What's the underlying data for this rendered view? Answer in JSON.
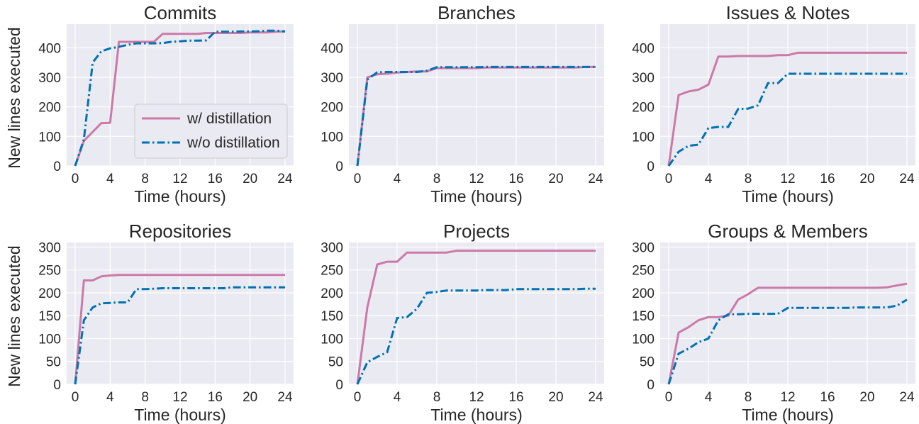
{
  "colors": {
    "with": "#cc79a7",
    "without": "#0072b2",
    "panel_bg": "#eaeaf2",
    "grid": "#ffffff"
  },
  "legend": {
    "with_label": "w/ distillation",
    "without_label": "w/o distillation",
    "location": "lower-right of first panel"
  },
  "chart_data": [
    {
      "type": "line",
      "title": "Commits",
      "xlabel": "Time (hours)",
      "ylabel": "New lines executed",
      "xlim": [
        0,
        24
      ],
      "ylim": [
        0,
        480
      ],
      "xticks": [
        0,
        4,
        8,
        12,
        16,
        20,
        24
      ],
      "yticks": [
        0,
        100,
        200,
        300,
        400
      ],
      "grid": true,
      "series": [
        {
          "name": "w/ distillation",
          "style": "solid",
          "x": [
            0,
            1,
            2,
            3,
            4,
            5,
            6,
            7,
            8,
            9,
            10,
            11,
            12,
            13,
            14,
            15,
            16,
            17,
            18,
            19,
            20,
            21,
            22,
            23,
            24
          ],
          "values": [
            0,
            85,
            115,
            145,
            146,
            420,
            420,
            420,
            420,
            420,
            447,
            447,
            447,
            447,
            447,
            450,
            450,
            450,
            450,
            450,
            452,
            452,
            452,
            454,
            455
          ]
        },
        {
          "name": "w/o distillation",
          "style": "dashdot",
          "x": [
            0,
            1,
            2,
            3,
            4,
            5,
            6,
            7,
            8,
            9,
            10,
            11,
            12,
            13,
            14,
            15,
            16,
            17,
            18,
            19,
            20,
            21,
            22,
            23,
            24
          ],
          "values": [
            0,
            90,
            350,
            388,
            398,
            403,
            410,
            415,
            415,
            415,
            416,
            420,
            422,
            424,
            424,
            425,
            454,
            454,
            454,
            455,
            455,
            456,
            458,
            458,
            455
          ]
        }
      ]
    },
    {
      "type": "line",
      "title": "Branches",
      "xlabel": "Time (hours)",
      "ylabel": "",
      "xlim": [
        0,
        24
      ],
      "ylim": [
        0,
        480
      ],
      "xticks": [
        0,
        4,
        8,
        12,
        16,
        20,
        24
      ],
      "yticks": [
        0,
        100,
        200,
        300,
        400
      ],
      "grid": true,
      "series": [
        {
          "name": "w/ distillation",
          "style": "solid",
          "x": [
            0,
            1,
            2,
            3,
            4,
            5,
            6,
            7,
            8,
            9,
            10,
            11,
            12,
            13,
            14,
            15,
            16,
            17,
            18,
            19,
            20,
            21,
            22,
            23,
            24
          ],
          "values": [
            0,
            300,
            310,
            312,
            316,
            318,
            320,
            320,
            331,
            331,
            331,
            331,
            331,
            333,
            333,
            333,
            333,
            333,
            333,
            333,
            333,
            333,
            333,
            335,
            335
          ]
        },
        {
          "name": "w/o distillation",
          "style": "dashdot",
          "x": [
            0,
            1,
            2,
            3,
            4,
            5,
            6,
            7,
            8,
            9,
            10,
            11,
            12,
            13,
            14,
            15,
            16,
            17,
            18,
            19,
            20,
            21,
            22,
            23,
            24
          ],
          "values": [
            0,
            292,
            317,
            318,
            318,
            318,
            318,
            322,
            334,
            334,
            334,
            334,
            334,
            335,
            335,
            335,
            335,
            335,
            335,
            335,
            335,
            335,
            335,
            335,
            335
          ]
        }
      ]
    },
    {
      "type": "line",
      "title": "Issues & Notes",
      "xlabel": "Time (hours)",
      "ylabel": "",
      "xlim": [
        0,
        24
      ],
      "ylim": [
        0,
        480
      ],
      "xticks": [
        0,
        4,
        8,
        12,
        16,
        20,
        24
      ],
      "yticks": [
        0,
        100,
        200,
        300,
        400
      ],
      "grid": true,
      "series": [
        {
          "name": "w/ distillation",
          "style": "solid",
          "x": [
            0,
            1,
            2,
            3,
            4,
            5,
            6,
            7,
            8,
            9,
            10,
            11,
            12,
            13,
            14,
            15,
            16,
            17,
            18,
            19,
            20,
            21,
            22,
            23,
            24
          ],
          "values": [
            0,
            240,
            252,
            258,
            275,
            370,
            370,
            372,
            372,
            372,
            372,
            375,
            375,
            383,
            383,
            383,
            383,
            383,
            383,
            383,
            383,
            383,
            383,
            383,
            383
          ]
        },
        {
          "name": "w/o distillation",
          "style": "dashdot",
          "x": [
            0,
            1,
            2,
            3,
            4,
            5,
            6,
            7,
            8,
            9,
            10,
            11,
            12,
            13,
            14,
            15,
            16,
            17,
            18,
            19,
            20,
            21,
            22,
            23,
            24
          ],
          "values": [
            0,
            48,
            68,
            72,
            128,
            132,
            132,
            193,
            194,
            205,
            280,
            280,
            312,
            312,
            312,
            312,
            312,
            312,
            312,
            312,
            312,
            312,
            312,
            312,
            312
          ]
        }
      ]
    },
    {
      "type": "line",
      "title": "Repositories",
      "xlabel": "Time (hours)",
      "ylabel": "New lines executed",
      "xlim": [
        0,
        24
      ],
      "ylim": [
        0,
        310
      ],
      "xticks": [
        0,
        4,
        8,
        12,
        16,
        20,
        24
      ],
      "yticks": [
        0,
        50,
        100,
        150,
        200,
        250,
        300
      ],
      "grid": true,
      "series": [
        {
          "name": "w/ distillation",
          "style": "solid",
          "x": [
            0,
            1,
            2,
            3,
            4,
            5,
            6,
            7,
            8,
            9,
            10,
            11,
            12,
            13,
            14,
            15,
            16,
            17,
            18,
            19,
            20,
            21,
            22,
            23,
            24
          ],
          "values": [
            0,
            227,
            227,
            236,
            238,
            239,
            239,
            239,
            239,
            239,
            239,
            239,
            239,
            239,
            239,
            239,
            239,
            239,
            239,
            239,
            239,
            239,
            239,
            239,
            239
          ]
        },
        {
          "name": "w/o distillation",
          "style": "dashdot",
          "x": [
            0,
            1,
            2,
            3,
            4,
            5,
            6,
            7,
            8,
            9,
            10,
            11,
            12,
            13,
            14,
            15,
            16,
            17,
            18,
            19,
            20,
            21,
            22,
            23,
            24
          ],
          "values": [
            0,
            140,
            168,
            177,
            178,
            179,
            179,
            208,
            208,
            209,
            210,
            210,
            210,
            210,
            210,
            210,
            210,
            210,
            212,
            212,
            212,
            212,
            212,
            212,
            212
          ]
        }
      ]
    },
    {
      "type": "line",
      "title": "Projects",
      "xlabel": "Time (hours)",
      "ylabel": "",
      "xlim": [
        0,
        24
      ],
      "ylim": [
        0,
        310
      ],
      "xticks": [
        0,
        4,
        8,
        12,
        16,
        20,
        24
      ],
      "yticks": [
        0,
        50,
        100,
        150,
        200,
        250,
        300
      ],
      "grid": true,
      "series": [
        {
          "name": "w/ distillation",
          "style": "solid",
          "x": [
            0,
            1,
            2,
            3,
            4,
            5,
            6,
            7,
            8,
            9,
            10,
            11,
            12,
            13,
            14,
            15,
            16,
            17,
            18,
            19,
            20,
            21,
            22,
            23,
            24
          ],
          "values": [
            0,
            168,
            262,
            268,
            268,
            288,
            288,
            288,
            288,
            288,
            292,
            292,
            292,
            292,
            292,
            292,
            292,
            292,
            292,
            292,
            292,
            292,
            292,
            292,
            292
          ]
        },
        {
          "name": "w/o distillation",
          "style": "dashdot",
          "x": [
            0,
            1,
            2,
            3,
            4,
            5,
            6,
            7,
            8,
            9,
            10,
            11,
            12,
            13,
            14,
            15,
            16,
            17,
            18,
            19,
            20,
            21,
            22,
            23,
            24
          ],
          "values": [
            0,
            48,
            60,
            70,
            145,
            147,
            165,
            200,
            202,
            205,
            205,
            205,
            205,
            206,
            206,
            206,
            208,
            208,
            208,
            208,
            208,
            208,
            208,
            209,
            209
          ]
        }
      ]
    },
    {
      "type": "line",
      "title": "Groups & Members",
      "xlabel": "Time (hours)",
      "ylabel": "",
      "xlim": [
        0,
        24
      ],
      "ylim": [
        0,
        310
      ],
      "xticks": [
        0,
        4,
        8,
        12,
        16,
        20,
        24
      ],
      "yticks": [
        0,
        50,
        100,
        150,
        200,
        250,
        300
      ],
      "grid": true,
      "series": [
        {
          "name": "w/ distillation",
          "style": "solid",
          "x": [
            0,
            1,
            2,
            3,
            4,
            5,
            6,
            7,
            8,
            9,
            10,
            11,
            12,
            13,
            14,
            15,
            16,
            17,
            18,
            19,
            20,
            21,
            22,
            23,
            24
          ],
          "values": [
            0,
            113,
            125,
            140,
            147,
            147,
            150,
            185,
            197,
            211,
            211,
            211,
            211,
            211,
            211,
            211,
            211,
            211,
            211,
            211,
            211,
            211,
            212,
            216,
            220
          ]
        },
        {
          "name": "w/o distillation",
          "style": "dashdot",
          "x": [
            0,
            1,
            2,
            3,
            4,
            5,
            6,
            7,
            8,
            9,
            10,
            11,
            12,
            13,
            14,
            15,
            16,
            17,
            18,
            19,
            20,
            21,
            22,
            23,
            24
          ],
          "values": [
            0,
            67,
            78,
            92,
            100,
            140,
            153,
            153,
            154,
            154,
            154,
            154,
            167,
            167,
            167,
            167,
            167,
            167,
            167,
            168,
            168,
            168,
            168,
            172,
            185
          ]
        }
      ]
    }
  ]
}
